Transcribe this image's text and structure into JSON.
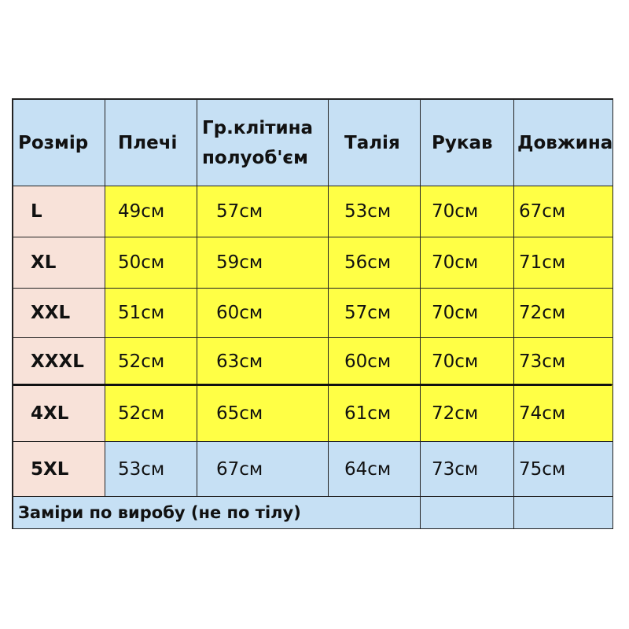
{
  "headers": [
    "Розмір",
    "Плечі",
    "Гр.клітина\nполуоб'єм",
    "Талія",
    "Рукав",
    "Довжина"
  ],
  "rows": [
    {
      "size": "L",
      "values": [
        "49см",
        "57см",
        "53см",
        "70см",
        "67см"
      ],
      "fill": "yellow"
    },
    {
      "size": "XL",
      "values": [
        "50см",
        "59см",
        "56см",
        "70см",
        "71см"
      ],
      "fill": "yellow"
    },
    {
      "size": "XXL",
      "values": [
        "51см",
        "60см",
        "57см",
        "70см",
        "72см"
      ],
      "fill": "yellow"
    },
    {
      "size": "XXXL",
      "values": [
        "52см",
        "63см",
        "60см",
        "70см",
        "73см"
      ],
      "fill": "yellow"
    },
    {
      "size": "4XL",
      "values": [
        "52см",
        "65см",
        "61см",
        "72см",
        "74см"
      ],
      "fill": "yellow"
    },
    {
      "size": "5XL",
      "values": [
        "53см",
        "67см",
        "64см",
        "73см",
        "75см"
      ],
      "fill": "blue"
    }
  ],
  "footer": "Заміри по виробу (не по тілу)",
  "colors": {
    "header": "#c6e0f4",
    "size_column": "#f8e2d9",
    "yellow": "#ffff45",
    "blue": "#c6e0f4"
  }
}
